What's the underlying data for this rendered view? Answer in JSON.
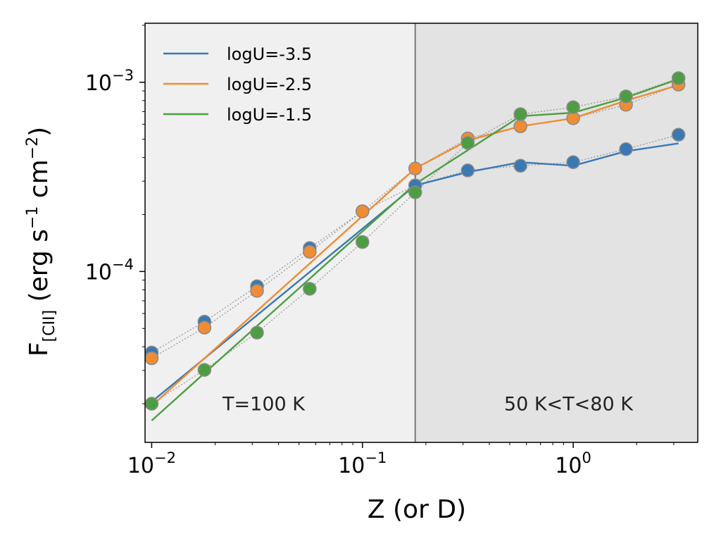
{
  "chart_data": {
    "type": "line",
    "xscale": "log",
    "yscale": "log",
    "xlim": [
      0.0093,
      3.9
    ],
    "ylim": [
      1.25e-05,
      0.00205
    ],
    "xlabel": "Z (or D)",
    "ylabel_main": "F",
    "ylabel_sub": "[CII]",
    "ylabel_rest": " (erg s",
    "ylabel_exp1": "−1",
    "ylabel_mid": " cm",
    "ylabel_exp2": "−2",
    "ylabel_close": ")",
    "x_ticks": [
      {
        "value": 0.01,
        "base": "10",
        "exp": "−2"
      },
      {
        "value": 0.1,
        "base": "10",
        "exp": "−1"
      },
      {
        "value": 1,
        "base": "10",
        "exp": "0"
      }
    ],
    "y_ticks": [
      {
        "value": 0.0001,
        "base": "10",
        "exp": "−4"
      },
      {
        "value": 0.001,
        "base": "10",
        "exp": "−3"
      }
    ],
    "regions": [
      {
        "label": "T=100 K",
        "x_from": 0.0093,
        "x_to": 0.178,
        "color": "#f0f0f0",
        "label_x": 0.034,
        "label_y": 1.85e-05
      },
      {
        "label": "50 K<T<80 K",
        "x_from": 0.178,
        "x_to": 3.9,
        "color": "#e3e3e3",
        "label_x": 0.95,
        "label_y": 1.85e-05
      }
    ],
    "divider_x": 0.178,
    "x": [
      0.01,
      0.0178,
      0.0316,
      0.0562,
      0.1,
      0.178,
      0.316,
      0.562,
      1.0,
      1.78,
      3.16
    ],
    "series": [
      {
        "name": "logU=-3.5",
        "color": "#3a78b4",
        "points": [
          3.73e-05,
          5.43e-05,
          8.35e-05,
          0.000133,
          0.000208,
          0.000285,
          0.000342,
          0.000362,
          0.000378,
          0.000443,
          0.000528
        ],
        "fit_x": [
          0.01,
          0.178,
          0.316,
          0.562,
          1.0,
          1.78,
          3.16
        ],
        "fit_y": [
          2.05e-05,
          0.000285,
          0.000335,
          0.000378,
          0.000362,
          0.000432,
          0.000475
        ]
      },
      {
        "name": "logU=-2.5",
        "color": "#f08c34",
        "points": [
          3.48e-05,
          5.05e-05,
          7.9e-05,
          0.000127,
          0.000208,
          0.00035,
          0.000505,
          0.000585,
          0.000645,
          0.00076,
          0.000972
        ],
        "fit_x": [
          0.01,
          0.178,
          0.316,
          0.562,
          1.0,
          1.78,
          3.16
        ],
        "fit_y": [
          1.95e-05,
          0.00035,
          0.000492,
          0.000585,
          0.000645,
          0.0008,
          0.000965
        ]
      },
      {
        "name": "logU=-1.5",
        "color": "#4d9e42",
        "points": [
          2e-05,
          3.02e-05,
          4.75e-05,
          8.1e-05,
          0.000143,
          0.000262,
          0.000478,
          0.000678,
          0.000738,
          0.000842,
          0.00105
        ],
        "fit_x": [
          0.01,
          0.178,
          0.562,
          1.0,
          1.78,
          3.16
        ],
        "fit_y": [
          1.63e-05,
          0.00029,
          0.000662,
          0.00069,
          0.00083,
          0.00104
        ]
      }
    ]
  }
}
